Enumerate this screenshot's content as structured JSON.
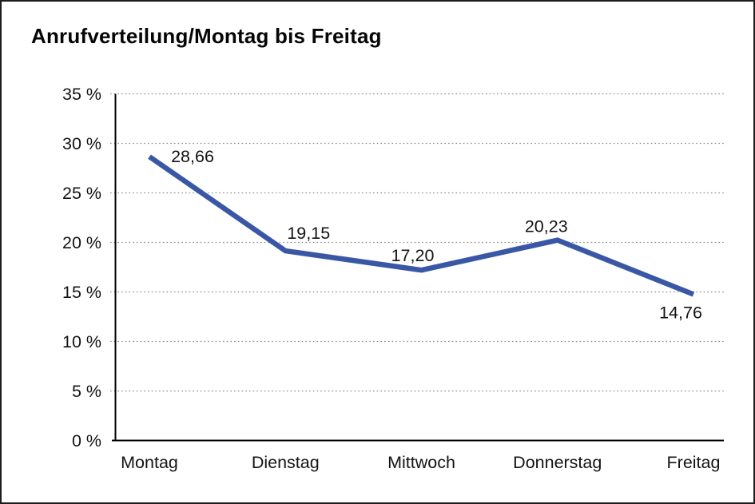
{
  "chart_data": {
    "type": "line",
    "title": "Anrufverteilung/Montag bis Freitag",
    "categories": [
      "Montag",
      "Dienstag",
      "Mittwoch",
      "Donnerstag",
      "Freitag"
    ],
    "series": [
      {
        "name": "Anrufverteilung",
        "values": [
          28.66,
          19.15,
          17.2,
          20.23,
          14.76
        ]
      }
    ],
    "value_labels": [
      "28,66",
      "19,15",
      "17,20",
      "20,23",
      "14,76"
    ],
    "y_tick_labels": [
      "0 %",
      "5 %",
      "10 %",
      "15 %",
      "20 %",
      "25 %",
      "30 %",
      "35 %"
    ],
    "xlabel": "",
    "ylabel": "",
    "ylim": [
      0,
      35
    ],
    "y_tick_step": 5,
    "grid": "horizontal-dotted",
    "legend": "none",
    "colors": {
      "line": "#3A57A6",
      "grid": "#8a8a8a",
      "axis": "#000000",
      "text": "#141414"
    }
  }
}
